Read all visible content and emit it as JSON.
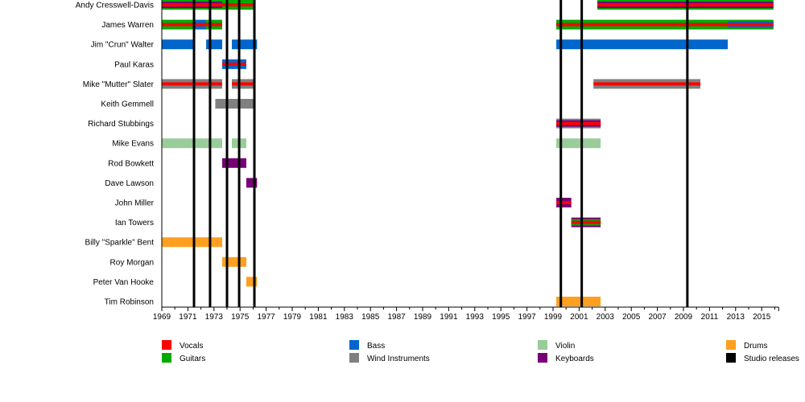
{
  "chart_data": {
    "type": "timeline",
    "title": "",
    "xlabel": "",
    "ylabel": "",
    "xlim": [
      1969,
      2016.3
    ],
    "tick_years": [
      1969,
      1971,
      1973,
      1975,
      1977,
      1979,
      1981,
      1983,
      1985,
      1987,
      1989,
      1991,
      1993,
      1995,
      1997,
      1999,
      2001,
      2003,
      2005,
      2007,
      2009,
      2011,
      2013,
      2015
    ],
    "colors": {
      "vocals": "#ff0000",
      "guitars": "#00aa00",
      "bass": "#0066cc",
      "wind": "#808080",
      "violin": "#99cc99",
      "keyboards": "#770077",
      "drums": "#ff9f20",
      "studio": "#000000"
    },
    "members": [
      {
        "name": "Andy Cresswell-Davis",
        "bars": [
          {
            "start": 1969,
            "end": 1973.63,
            "main": "guitars",
            "stripes": [
              "keyboards",
              "vocals"
            ]
          },
          {
            "start": 1973.63,
            "end": 1976.1,
            "main": "guitars",
            "stripes": [
              "vocals"
            ]
          },
          {
            "start": 2002.4,
            "end": 2015.9,
            "main": "guitars",
            "stripes": [
              "keyboards",
              "vocals"
            ]
          }
        ]
      },
      {
        "name": "James Warren",
        "bars": [
          {
            "start": 1969,
            "end": 1971.47,
            "main": "guitars",
            "stripes": [
              "vocals"
            ]
          },
          {
            "start": 1971.47,
            "end": 1972.4,
            "main": "bass",
            "stripes": [
              "vocals"
            ]
          },
          {
            "start": 1972.4,
            "end": 1973.63,
            "main": "guitars",
            "stripes": [
              "vocals"
            ]
          },
          {
            "start": 1999.25,
            "end": 2012.4,
            "main": "guitars",
            "stripes": [
              "vocals"
            ]
          },
          {
            "start": 2012.4,
            "end": 2015.9,
            "main": "guitars",
            "stripes": [
              "bass",
              "vocals"
            ]
          }
        ]
      },
      {
        "name": "Jim \"Crun\" Walter",
        "bars": [
          {
            "start": 1969,
            "end": 1971.47,
            "main": "bass",
            "stripes": []
          },
          {
            "start": 1972.4,
            "end": 1973.63,
            "main": "bass",
            "stripes": []
          },
          {
            "start": 1974.37,
            "end": 1976.3,
            "main": "bass",
            "stripes": []
          },
          {
            "start": 1999.25,
            "end": 2012.4,
            "main": "bass",
            "stripes": []
          }
        ]
      },
      {
        "name": "Paul Karas",
        "bars": [
          {
            "start": 1973.63,
            "end": 1975.48,
            "main": "bass",
            "stripes": [
              "vocals"
            ]
          }
        ]
      },
      {
        "name": "Mike \"Mutter\" Slater",
        "bars": [
          {
            "start": 1969,
            "end": 1973.63,
            "main": "wind",
            "stripes": [
              "vocals"
            ]
          },
          {
            "start": 1974.37,
            "end": 1976.1,
            "main": "wind",
            "stripes": [
              "vocals"
            ]
          },
          {
            "start": 2002.1,
            "end": 2010.3,
            "main": "wind",
            "stripes": [
              "vocals"
            ]
          }
        ]
      },
      {
        "name": "Keith Gemmell",
        "bars": [
          {
            "start": 1973.1,
            "end": 1976.1,
            "main": "wind",
            "stripes": []
          }
        ]
      },
      {
        "name": "Richard Stubbings",
        "bars": [
          {
            "start": 1999.25,
            "end": 2002.65,
            "main": "wind",
            "stripes": [
              "keyboards",
              "vocals"
            ]
          }
        ]
      },
      {
        "name": "Mike Evans",
        "bars": [
          {
            "start": 1969,
            "end": 1973.63,
            "main": "violin",
            "stripes": []
          },
          {
            "start": 1974.37,
            "end": 1975.48,
            "main": "violin",
            "stripes": []
          },
          {
            "start": 1999.25,
            "end": 2002.65,
            "main": "violin",
            "stripes": []
          }
        ]
      },
      {
        "name": "Rod Bowkett",
        "bars": [
          {
            "start": 1973.63,
            "end": 1975.48,
            "main": "keyboards",
            "stripes": []
          }
        ]
      },
      {
        "name": "Dave Lawson",
        "bars": [
          {
            "start": 1975.48,
            "end": 1976.3,
            "main": "keyboards",
            "stripes": []
          }
        ]
      },
      {
        "name": "John Miller",
        "bars": [
          {
            "start": 1999.25,
            "end": 2000.4,
            "main": "keyboards",
            "stripes": [
              "vocals"
            ]
          }
        ]
      },
      {
        "name": "Ian Towers",
        "bars": [
          {
            "start": 2000.4,
            "end": 2002.65,
            "main": "keyboards",
            "stripes": [
              "guitars",
              "vocals"
            ]
          }
        ]
      },
      {
        "name": "Billy \"Sparkle\" Bent",
        "bars": [
          {
            "start": 1969,
            "end": 1973.63,
            "main": "drums",
            "stripes": []
          }
        ]
      },
      {
        "name": "Roy Morgan",
        "bars": [
          {
            "start": 1973.63,
            "end": 1975.48,
            "main": "drums",
            "stripes": []
          }
        ]
      },
      {
        "name": "Peter Van Hooke",
        "bars": [
          {
            "start": 1975.48,
            "end": 1976.3,
            "main": "drums",
            "stripes": []
          }
        ]
      },
      {
        "name": "Tim Robinson",
        "bars": [
          {
            "start": 1999.25,
            "end": 2002.65,
            "main": "drums",
            "stripes": []
          }
        ]
      }
    ],
    "studio_releases": [
      1971.47,
      1972.7,
      1974.0,
      1974.93,
      1976.1,
      1999.6,
      2001.2,
      2009.3
    ],
    "legend": [
      {
        "key": "vocals",
        "label": "Vocals"
      },
      {
        "key": "guitars",
        "label": "Guitars"
      },
      {
        "key": "bass",
        "label": "Bass"
      },
      {
        "key": "wind",
        "label": "Wind Instruments"
      },
      {
        "key": "violin",
        "label": "Violin"
      },
      {
        "key": "keyboards",
        "label": "Keyboards"
      },
      {
        "key": "drums",
        "label": "Drums"
      },
      {
        "key": "studio",
        "label": "Studio releases"
      }
    ],
    "legend_position": "bottom"
  }
}
